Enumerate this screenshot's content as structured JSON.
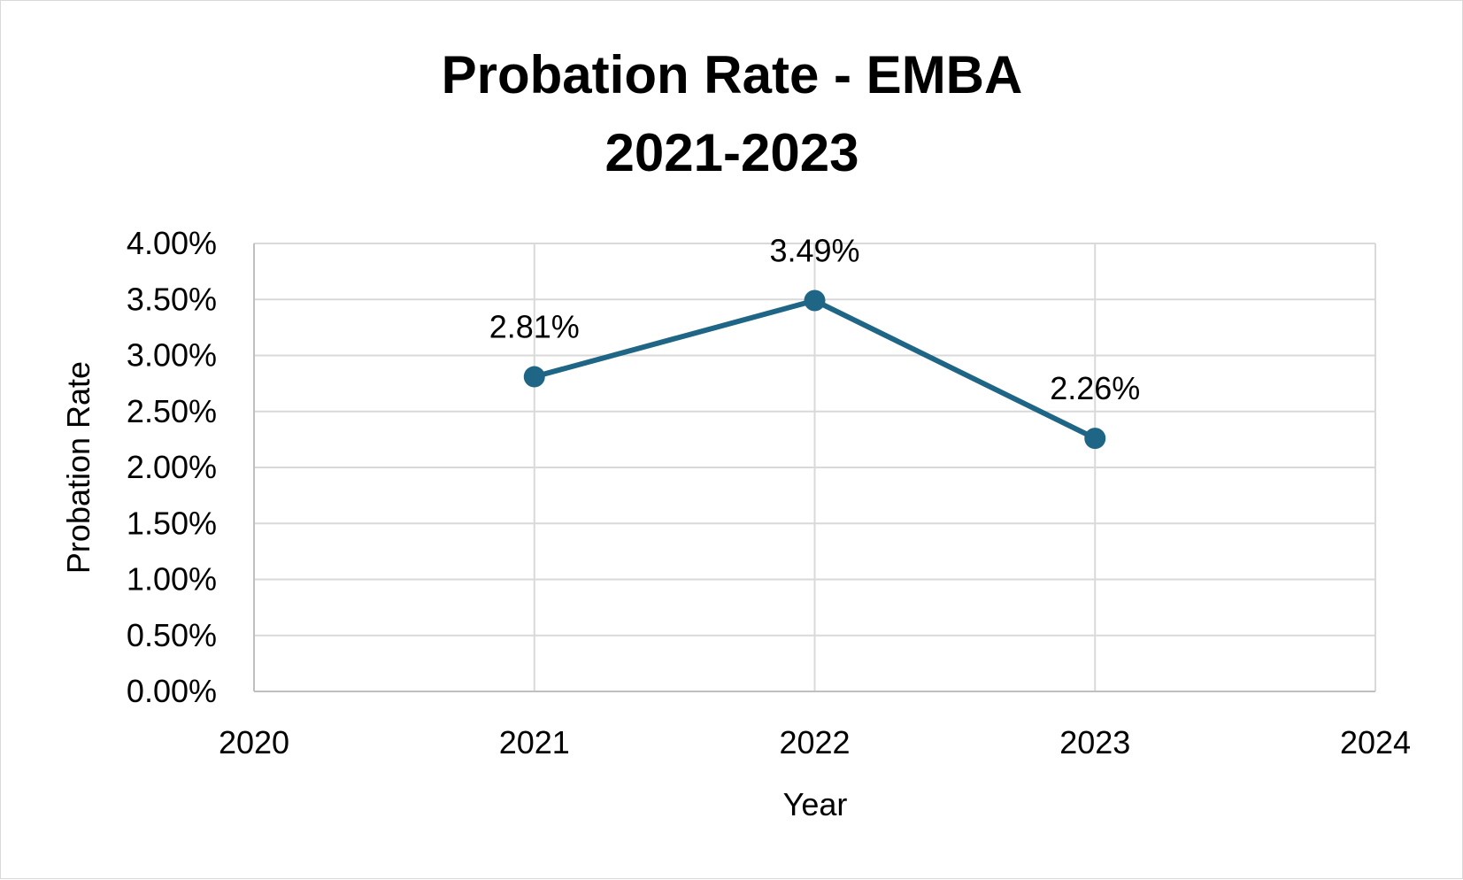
{
  "chart_data": {
    "type": "scatter",
    "title_lines": [
      "Probation Rate - EMBA",
      "2021-2023"
    ],
    "xlabel": "Year",
    "ylabel": "Probation Rate",
    "xlim": [
      2020,
      2024
    ],
    "ylim": [
      0,
      4
    ],
    "x_ticks": [
      2020,
      2021,
      2022,
      2023,
      2024
    ],
    "x_tick_labels": [
      "2020",
      "2021",
      "2022",
      "2023",
      "2024"
    ],
    "y_ticks": [
      0,
      0.5,
      1,
      1.5,
      2,
      2.5,
      3,
      3.5,
      4
    ],
    "y_tick_labels": [
      "0.00%",
      "0.50%",
      "1.00%",
      "1.50%",
      "2.00%",
      "2.50%",
      "3.00%",
      "3.50%",
      "4.00%"
    ],
    "grid": true,
    "legend": "none",
    "series": [
      {
        "x": [
          2021,
          2022,
          2023
        ],
        "values": [
          2.81,
          3.49,
          2.26
        ],
        "data_labels": [
          "2.81%",
          "3.49%",
          "2.26%"
        ],
        "color": "#1f6585",
        "line_style": "lines-and-markers"
      }
    ]
  }
}
